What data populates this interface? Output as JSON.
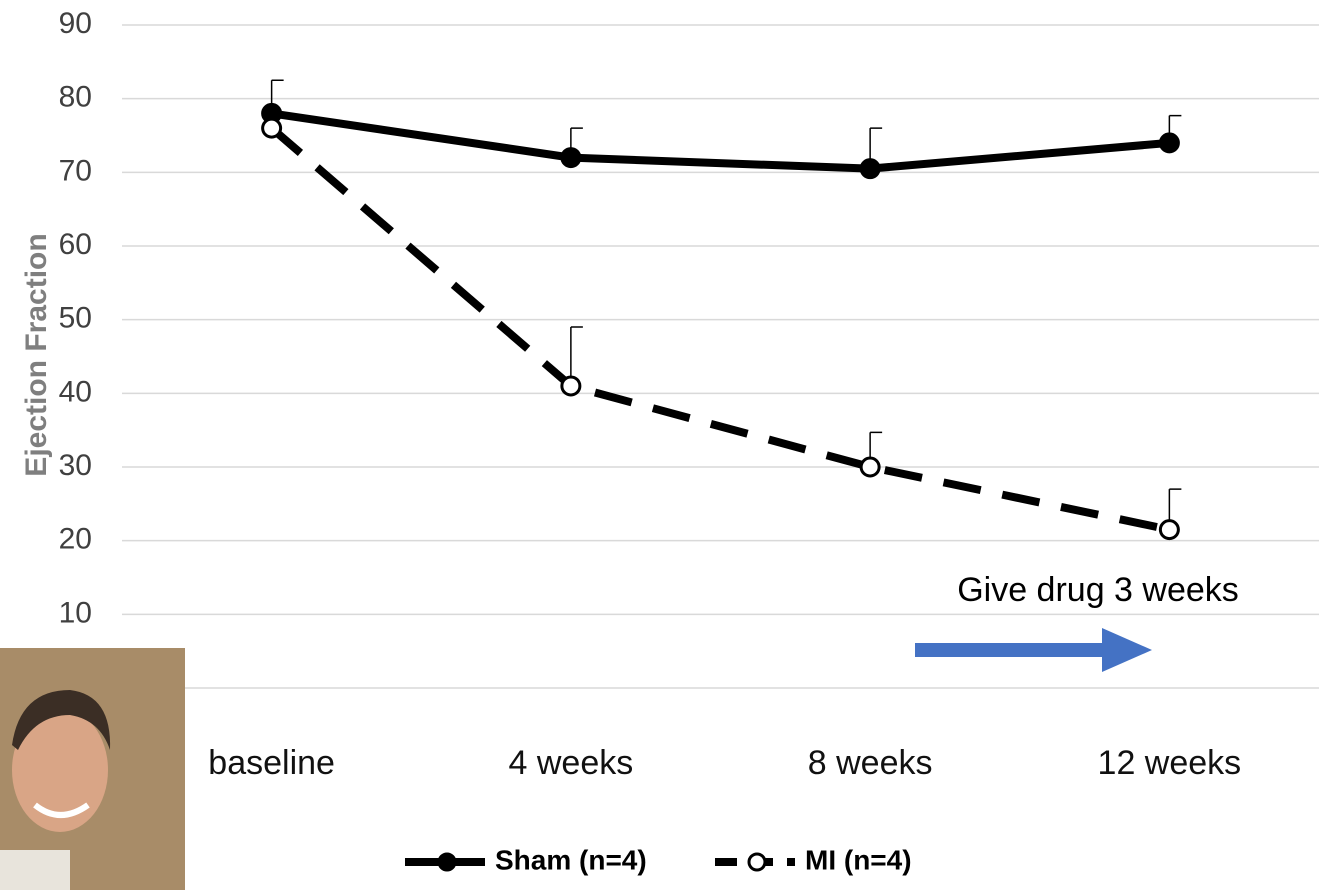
{
  "chart_data": {
    "type": "line",
    "y_label": "Ejection Fraction",
    "categories": [
      "baseline",
      "4 weeks",
      "8 weeks",
      "12 weeks"
    ],
    "series": [
      {
        "name": "Sham (n=4)",
        "color": "#000000",
        "line_style": "solid",
        "marker_fill": "#000000",
        "values": [
          78,
          72,
          70.5,
          74
        ],
        "errors": [
          4.5,
          4,
          5.5,
          3.7
        ]
      },
      {
        "name": "MI (n=4)",
        "color": "#000000",
        "line_style": "dashed",
        "marker_fill": "#ffffff",
        "values": [
          76,
          41,
          30,
          21.5
        ],
        "errors": [
          null,
          8,
          4.7,
          5.5
        ]
      }
    ],
    "ylim": [
      0,
      90
    ],
    "yticks": [
      10,
      20,
      30,
      40,
      50,
      60,
      70,
      80,
      90
    ],
    "grid": true,
    "annotation": {
      "text": "Give drug 3 weeks",
      "arrow_color": "#4472c4"
    }
  }
}
